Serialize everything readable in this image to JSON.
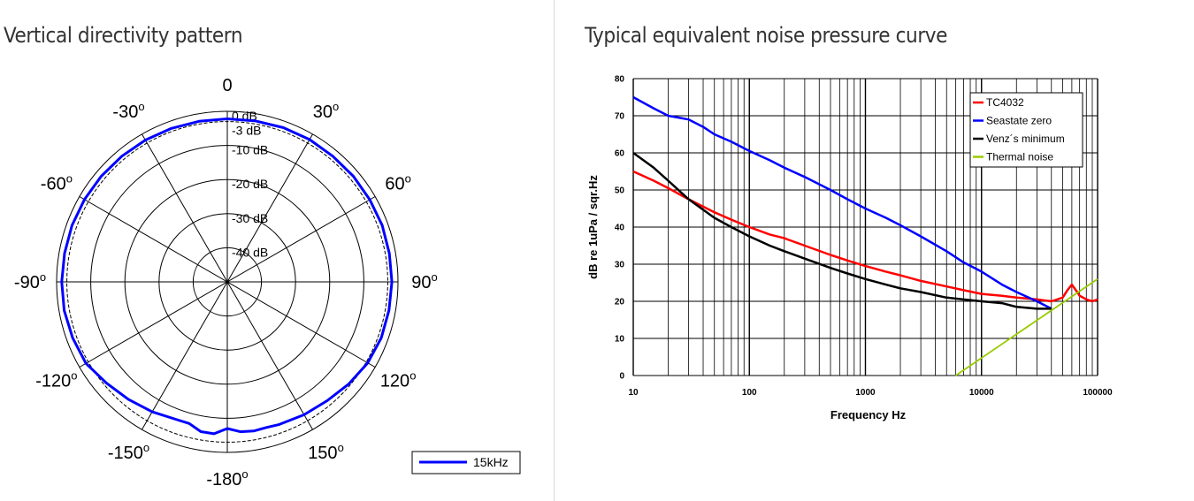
{
  "left_panel": {
    "title": "Vertical directivity pattern"
  },
  "right_panel": {
    "title": "Typical equivalent noise pressure curve"
  },
  "chart_data": [
    {
      "type": "polar-line",
      "title": "Vertical directivity pattern",
      "angle_labels": [
        {
          "angle": 0,
          "text": "0"
        },
        {
          "angle": 30,
          "text": "30",
          "deg": "o"
        },
        {
          "angle": 60,
          "text": "60",
          "deg": "o"
        },
        {
          "angle": 90,
          "text": "90",
          "deg": "o"
        },
        {
          "angle": 120,
          "text": "120",
          "deg": "o"
        },
        {
          "angle": 150,
          "text": "150",
          "deg": "o"
        },
        {
          "angle": 180,
          "text": "-180",
          "deg": "o"
        },
        {
          "angle": -150,
          "text": "-150",
          "deg": "o"
        },
        {
          "angle": -120,
          "text": "-120",
          "deg": "o"
        },
        {
          "angle": -90,
          "text": "-90",
          "deg": "o"
        },
        {
          "angle": -60,
          "text": "-60",
          "deg": "o"
        },
        {
          "angle": -30,
          "text": "-30",
          "deg": "o"
        }
      ],
      "rings": [
        {
          "db": 0,
          "label": "0 dB"
        },
        {
          "db": -3,
          "label": "-3 dB",
          "dashed": true
        },
        {
          "db": -10,
          "label": "-10 dB"
        },
        {
          "db": -20,
          "label": "-20 dB"
        },
        {
          "db": -30,
          "label": "-30 dB"
        },
        {
          "db": -40,
          "label": "-40 dB"
        }
      ],
      "rlim": [
        -50,
        0
      ],
      "spoke_step_deg": 30,
      "legend": {
        "position": "bottom-right",
        "entries": [
          {
            "name": "15kHz",
            "color": "#0000ff"
          }
        ]
      },
      "series": [
        {
          "name": "15kHz",
          "color": "#0000ff",
          "points": [
            {
              "a": 0,
              "db": -2.2
            },
            {
              "a": 10,
              "db": -2.1
            },
            {
              "a": 20,
              "db": -1.9
            },
            {
              "a": 30,
              "db": -1.8
            },
            {
              "a": 40,
              "db": -1.9
            },
            {
              "a": 50,
              "db": -1.8
            },
            {
              "a": 60,
              "db": -1.8
            },
            {
              "a": 70,
              "db": -1.7
            },
            {
              "a": 80,
              "db": -1.8
            },
            {
              "a": 90,
              "db": -1.8
            },
            {
              "a": 100,
              "db": -1.9
            },
            {
              "a": 110,
              "db": -2.0
            },
            {
              "a": 120,
              "db": -2.5
            },
            {
              "a": 130,
              "db": -3.5
            },
            {
              "a": 140,
              "db": -4.5
            },
            {
              "a": 150,
              "db": -5.0
            },
            {
              "a": 160,
              "db": -5.5
            },
            {
              "a": 165,
              "db": -5.8
            },
            {
              "a": 170,
              "db": -5.6
            },
            {
              "a": 175,
              "db": -5.9
            },
            {
              "a": 180,
              "db": -7.0
            },
            {
              "a": -175,
              "db": -5.3
            },
            {
              "a": -170,
              "db": -5.4
            },
            {
              "a": -165,
              "db": -7.0
            },
            {
              "a": -160,
              "db": -7.0
            },
            {
              "a": -150,
              "db": -6.0
            },
            {
              "a": -140,
              "db": -5.0
            },
            {
              "a": -130,
              "db": -3.8
            },
            {
              "a": -120,
              "db": -2.2
            },
            {
              "a": -110,
              "db": -1.8
            },
            {
              "a": -100,
              "db": -1.5
            },
            {
              "a": -90,
              "db": -1.5
            },
            {
              "a": -80,
              "db": -1.6
            },
            {
              "a": -70,
              "db": -1.6
            },
            {
              "a": -60,
              "db": -1.7
            },
            {
              "a": -50,
              "db": -1.8
            },
            {
              "a": -40,
              "db": -1.9
            },
            {
              "a": -30,
              "db": -2.0
            },
            {
              "a": -20,
              "db": -2.1
            },
            {
              "a": -10,
              "db": -2.2
            }
          ]
        }
      ]
    },
    {
      "type": "line",
      "title": "Typical equivalent noise pressure curve",
      "xlabel": "Frequency Hz",
      "ylabel": "dB re 1uPa / sqr.Hz",
      "x_scale": "log",
      "xlim": [
        10,
        100000
      ],
      "ylim": [
        0,
        80
      ],
      "x_ticks": [
        {
          "v": 10,
          "label": "10"
        },
        {
          "v": 100,
          "label": "100"
        },
        {
          "v": 1000,
          "label": "1000"
        },
        {
          "v": 10000,
          "label": "10000"
        },
        {
          "v": 100000,
          "label": "100000"
        }
      ],
      "y_ticks": [
        0,
        10,
        20,
        30,
        40,
        50,
        60,
        70,
        80
      ],
      "grid": true,
      "legend": {
        "position": "top-right"
      },
      "series": [
        {
          "name": "TC4032",
          "color": "#ff0000",
          "points": [
            [
              10,
              55
            ],
            [
              15,
              52.5
            ],
            [
              20,
              50.5
            ],
            [
              30,
              47.5
            ],
            [
              50,
              44
            ],
            [
              70,
              42
            ],
            [
              100,
              40
            ],
            [
              150,
              38
            ],
            [
              200,
              37
            ],
            [
              300,
              35
            ],
            [
              500,
              32.5
            ],
            [
              700,
              31
            ],
            [
              1000,
              29.5
            ],
            [
              1500,
              28
            ],
            [
              2000,
              27
            ],
            [
              3000,
              25.5
            ],
            [
              5000,
              24
            ],
            [
              7000,
              23
            ],
            [
              10000,
              22
            ],
            [
              15000,
              21.5
            ],
            [
              20000,
              21
            ],
            [
              30000,
              20.5
            ],
            [
              40000,
              20
            ],
            [
              50000,
              21
            ],
            [
              55000,
              23
            ],
            [
              60000,
              24.5
            ],
            [
              65000,
              23
            ],
            [
              70000,
              21.5
            ],
            [
              80000,
              20.5
            ],
            [
              90000,
              20
            ],
            [
              100000,
              20.5
            ]
          ]
        },
        {
          "name": "Seastate zero",
          "color": "#0000ff",
          "points": [
            [
              10,
              75
            ],
            [
              15,
              72
            ],
            [
              20,
              70
            ],
            [
              30,
              69
            ],
            [
              40,
              67
            ],
            [
              50,
              65
            ],
            [
              70,
              63
            ],
            [
              100,
              60.5
            ],
            [
              150,
              58
            ],
            [
              200,
              56
            ],
            [
              300,
              53.5
            ],
            [
              500,
              50
            ],
            [
              700,
              47.5
            ],
            [
              1000,
              45
            ],
            [
              1500,
              42.5
            ],
            [
              2000,
              40.5
            ],
            [
              3000,
              37.5
            ],
            [
              5000,
              33.5
            ],
            [
              7000,
              30.5
            ],
            [
              10000,
              28
            ],
            [
              15000,
              24.5
            ],
            [
              20000,
              22.5
            ],
            [
              30000,
              20
            ],
            [
              40000,
              18
            ]
          ]
        },
        {
          "name": "Venz´s minimum",
          "color": "#000000",
          "points": [
            [
              10,
              60
            ],
            [
              15,
              56
            ],
            [
              20,
              52.5
            ],
            [
              30,
              47.5
            ],
            [
              50,
              42.5
            ],
            [
              70,
              40
            ],
            [
              100,
              37.5
            ],
            [
              150,
              35
            ],
            [
              200,
              33.5
            ],
            [
              300,
              31.5
            ],
            [
              500,
              29
            ],
            [
              700,
              27.5
            ],
            [
              1000,
              26
            ],
            [
              1500,
              24.5
            ],
            [
              2000,
              23.5
            ],
            [
              3000,
              22.5
            ],
            [
              5000,
              21
            ],
            [
              7000,
              20.5
            ],
            [
              10000,
              20
            ],
            [
              15000,
              19.5
            ],
            [
              20000,
              18.5
            ],
            [
              30000,
              18
            ],
            [
              40000,
              18
            ]
          ]
        },
        {
          "name": "Thermal noise",
          "color": "#99cc00",
          "points": [
            [
              6000,
              0
            ],
            [
              100000,
              26
            ]
          ]
        }
      ]
    }
  ]
}
